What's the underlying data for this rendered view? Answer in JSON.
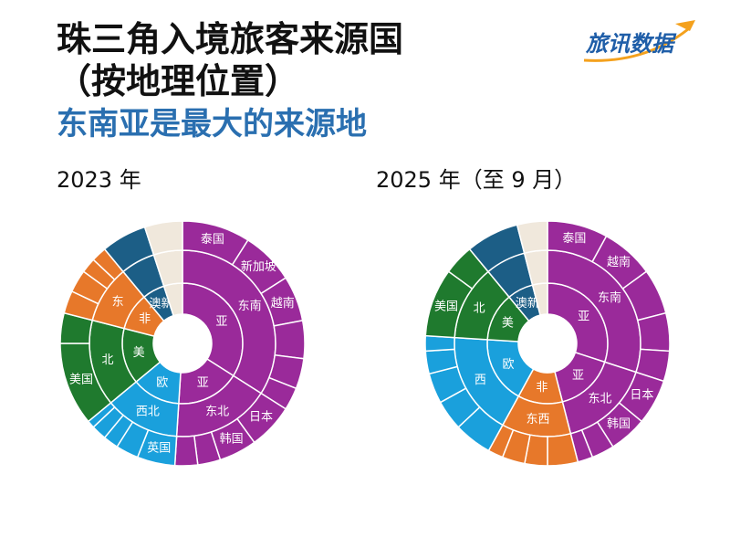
{
  "title": "珠三角入境旅客来源国\n（按地理位置）",
  "subtitle": "东南亚是最大的来源地",
  "brand": {
    "name": "旅讯数据",
    "color": "#1f5ea8",
    "accent": "#f4a11d"
  },
  "colors": {
    "东南亚": "#9a2a9a",
    "东北亚": "#9a2a9a",
    "欧洲": "#1aa0dc",
    "中东": "#e7782a",
    "北美": "#1f7a2e",
    "澳新": "#1c5e86",
    "其他": "#f0e8dc"
  },
  "chart_data": [
    {
      "type": "sunburst",
      "label": "2023 年",
      "rings": [
        "region",
        "subregion",
        "country"
      ],
      "segments": [
        {
          "region": "亚",
          "subregion": "东南",
          "value": 34,
          "countries": [
            {
              "name": "泰国",
              "value": 9
            },
            {
              "name": "新加坡",
              "value": 7
            },
            {
              "name": "越南",
              "value": 6
            },
            {
              "name": "",
              "value": 5
            },
            {
              "name": "",
              "value": 4
            },
            {
              "name": "",
              "value": 3
            }
          ]
        },
        {
          "region": "亚",
          "subregion": "东北",
          "value": 17,
          "countries": [
            {
              "name": "日本",
              "value": 6
            },
            {
              "name": "韩国",
              "value": 5
            },
            {
              "name": "",
              "value": 3
            },
            {
              "name": "",
              "value": 3
            }
          ]
        },
        {
          "region": "欧",
          "subregion": "西北",
          "value": 13,
          "countries": [
            {
              "name": "英国",
              "value": 5
            },
            {
              "name": "",
              "value": 3
            },
            {
              "name": "",
              "value": 2
            },
            {
              "name": "",
              "value": 2
            },
            {
              "name": "",
              "value": 1
            }
          ]
        },
        {
          "region": "美",
          "subregion": "北",
          "value": 15,
          "countries": [
            {
              "name": "美国",
              "value": 11
            },
            {
              "name": "",
              "value": 4
            }
          ]
        },
        {
          "region": "非",
          "subregion": "东",
          "value": 10,
          "countries": [
            {
              "name": "",
              "value": 3
            },
            {
              "name": "",
              "value": 3
            },
            {
              "name": "",
              "value": 2
            },
            {
              "name": "",
              "value": 2
            }
          ]
        },
        {
          "region": "澳新",
          "subregion": "",
          "value": 6,
          "countries": [
            {
              "name": "",
              "value": 6
            }
          ]
        },
        {
          "region": "",
          "subregion": "",
          "value": 5,
          "countries": [
            {
              "name": "",
              "value": 5
            }
          ]
        }
      ]
    },
    {
      "type": "sunburst",
      "label": "2025 年（至 9 月）",
      "rings": [
        "region",
        "subregion",
        "country"
      ],
      "segments": [
        {
          "region": "亚",
          "subregion": "东南",
          "value": 30,
          "countries": [
            {
              "name": "泰国",
              "value": 8
            },
            {
              "name": "越南",
              "value": 7
            },
            {
              "name": "",
              "value": 6
            },
            {
              "name": "",
              "value": 5
            },
            {
              "name": "",
              "value": 4
            }
          ]
        },
        {
          "region": "亚",
          "subregion": "东北",
          "value": 16,
          "countries": [
            {
              "name": "日本",
              "value": 6
            },
            {
              "name": "韩国",
              "value": 5
            },
            {
              "name": "",
              "value": 3
            },
            {
              "name": "",
              "value": 2
            }
          ]
        },
        {
          "region": "非",
          "subregion": "东西",
          "value": 12,
          "countries": [
            {
              "name": "",
              "value": 4
            },
            {
              "name": "",
              "value": 3
            },
            {
              "name": "",
              "value": 3
            },
            {
              "name": "",
              "value": 2
            }
          ]
        },
        {
          "region": "欧",
          "subregion": "西",
          "value": 18,
          "countries": [
            {
              "name": "",
              "value": 5
            },
            {
              "name": "",
              "value": 4
            },
            {
              "name": "",
              "value": 4
            },
            {
              "name": "",
              "value": 3
            },
            {
              "name": "",
              "value": 2
            }
          ]
        },
        {
          "region": "美",
          "subregion": "北",
          "value": 13,
          "countries": [
            {
              "name": "美国",
              "value": 9
            },
            {
              "name": "",
              "value": 4
            }
          ]
        },
        {
          "region": "澳新",
          "subregion": "",
          "value": 7,
          "countries": [
            {
              "name": "",
              "value": 7
            }
          ]
        },
        {
          "region": "",
          "subregion": "",
          "value": 4,
          "countries": [
            {
              "name": "",
              "value": 4
            }
          ]
        }
      ]
    }
  ]
}
